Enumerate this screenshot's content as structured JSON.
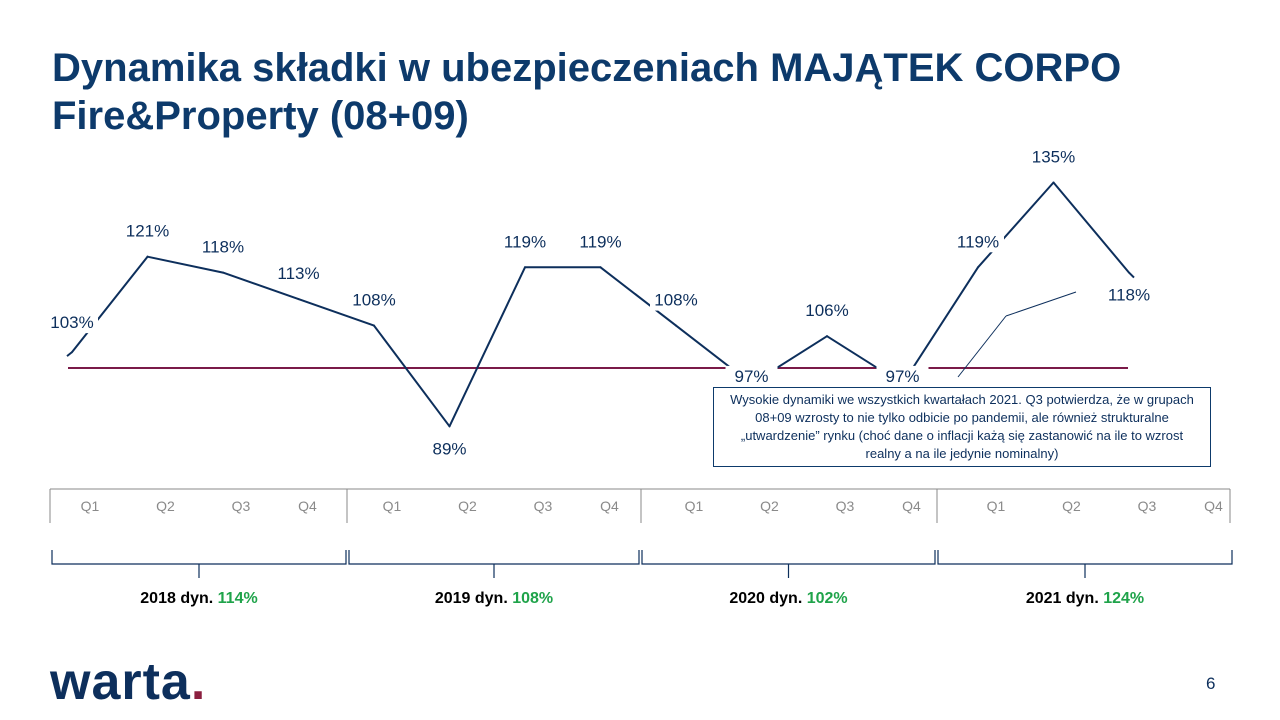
{
  "title": "Dynamika składki w ubezpieczeniach MAJĄTEK CORPO Fire&Property (08+09)",
  "chart_data": {
    "type": "line",
    "categories": [
      "Q1",
      "Q2",
      "Q3",
      "Q4",
      "Q1",
      "Q2",
      "Q3",
      "Q4",
      "Q1",
      "Q2",
      "Q3",
      "Q4",
      "Q1",
      "Q2",
      "Q3"
    ],
    "values": [
      103,
      121,
      118,
      113,
      108,
      89,
      119,
      119,
      108,
      97,
      106,
      97,
      119,
      135,
      118
    ],
    "data_labels": [
      "103%",
      "121%",
      "118%",
      "113%",
      "108%",
      "89%",
      "119%",
      "119%",
      "108%",
      "97%",
      "106%",
      "97%",
      "119%",
      "135%",
      "118%"
    ],
    "reference_value": 100,
    "ylim": [
      80,
      140
    ],
    "grid": false,
    "quarter_labels": [
      "Q1",
      "Q2",
      "Q3",
      "Q4",
      "Q1",
      "Q2",
      "Q3",
      "Q4",
      "Q1",
      "Q2",
      "Q3",
      "Q4",
      "Q1",
      "Q2",
      "Q3",
      "Q4"
    ],
    "years": [
      {
        "label": "2018 dyn.",
        "dyn": "114%"
      },
      {
        "label": "2019 dyn.",
        "dyn": "108%"
      },
      {
        "label": "2020 dyn.",
        "dyn": "102%"
      },
      {
        "label": "2021 dyn.",
        "dyn": "124%"
      }
    ],
    "annotation": "Wysokie dynamiki we wszystkich kwartałach 2021. Q3 potwierdza, że w grupach 08+09 wzrosty to nie tylko odbicie po pandemii, ale również strukturalne „utwardzenie” rynku (choć dane o inflacji każą się zastanowić na ile to wzrost realny a na ile jedynie nominalny)"
  },
  "colors": {
    "title": "#0d3a6b",
    "line": "#0d2f5c",
    "reference_line": "#7a1a48",
    "dyn_value": "#1fa34a",
    "axis": "#8a8a8a"
  },
  "logo": {
    "text": "warta",
    "dot": "."
  },
  "page_number": "6"
}
